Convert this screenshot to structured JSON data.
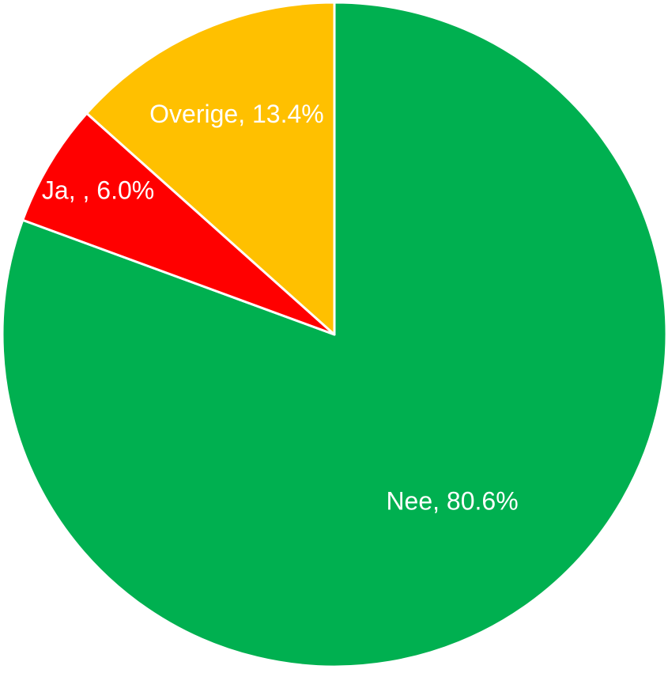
{
  "chart_data": {
    "type": "pie",
    "categories": [
      "Nee",
      "Ja, ",
      "Overige"
    ],
    "values": [
      80.6,
      6.0,
      13.4
    ],
    "value_labels": [
      ", 80.6%",
      ", 6.0%",
      ", 13.4%"
    ],
    "colors": [
      "#00b050",
      "#ff0000",
      "#ffc000"
    ]
  }
}
